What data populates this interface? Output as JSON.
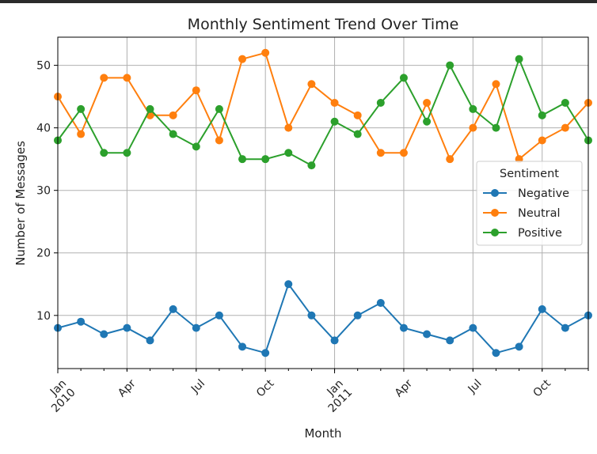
{
  "chart_data": {
    "type": "line",
    "title": "Monthly Sentiment Trend Over Time",
    "xlabel": "Month",
    "ylabel": "Number of Messages",
    "ylim": [
      1.5,
      54.5
    ],
    "yticks": [
      10,
      20,
      30,
      40,
      50
    ],
    "grid": true,
    "legend": {
      "title": "Sentiment",
      "placement": "center-right"
    },
    "x": [
      "2010-01",
      "2010-02",
      "2010-03",
      "2010-04",
      "2010-05",
      "2010-06",
      "2010-07",
      "2010-08",
      "2010-09",
      "2010-10",
      "2010-11",
      "2010-12",
      "2011-01",
      "2011-02",
      "2011-03",
      "2011-04",
      "2011-05",
      "2011-06",
      "2011-07",
      "2011-08",
      "2011-09",
      "2011-10",
      "2011-11",
      "2011-12"
    ],
    "xticks": [
      {
        "x": "2010-01",
        "label": "Jan\n2010",
        "major": true
      },
      {
        "x": "2010-04",
        "label": "Apr"
      },
      {
        "x": "2010-07",
        "label": "Jul"
      },
      {
        "x": "2010-10",
        "label": "Oct"
      },
      {
        "x": "2011-01",
        "label": "Jan\n2011",
        "major": true
      },
      {
        "x": "2011-04",
        "label": "Apr"
      },
      {
        "x": "2011-07",
        "label": "Jul"
      },
      {
        "x": "2011-10",
        "label": "Oct"
      }
    ],
    "series": [
      {
        "name": "Negative",
        "color": "#1f77b4",
        "values": [
          8,
          9,
          7,
          8,
          6,
          11,
          8,
          10,
          5,
          4,
          15,
          10,
          6,
          10,
          12,
          8,
          7,
          6,
          8,
          4,
          5,
          11,
          8,
          10
        ]
      },
      {
        "name": "Neutral",
        "color": "#ff7f0e",
        "values": [
          45,
          39,
          48,
          48,
          42,
          42,
          46,
          38,
          51,
          52,
          40,
          47,
          44,
          42,
          36,
          36,
          44,
          35,
          40,
          47,
          35,
          38,
          40,
          44
        ]
      },
      {
        "name": "Positive",
        "color": "#2ca02c",
        "values": [
          38,
          43,
          36,
          36,
          43,
          39,
          37,
          43,
          35,
          35,
          36,
          34,
          41,
          39,
          44,
          48,
          41,
          50,
          43,
          40,
          51,
          42,
          44,
          38
        ]
      }
    ]
  }
}
